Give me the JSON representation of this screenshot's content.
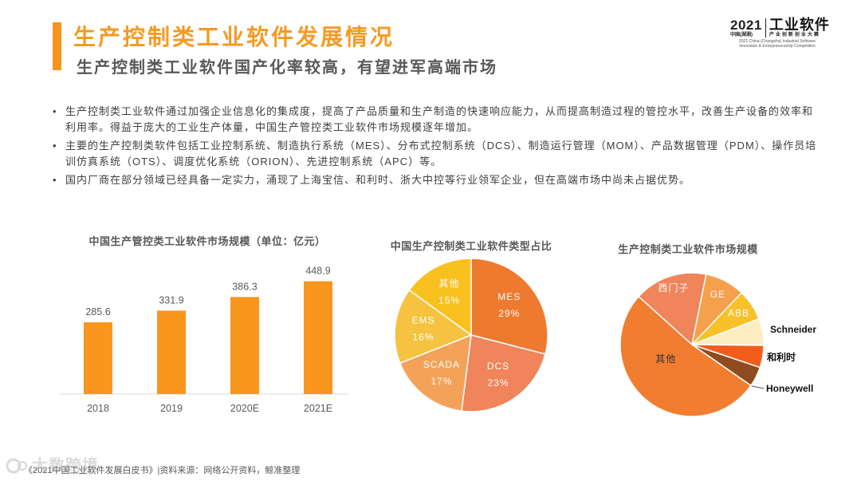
{
  "header": {
    "title": "生产控制类工业软件发展情况",
    "subtitle": "生产控制类工业软件国产化率较高，有望进军高端市场"
  },
  "logo": {
    "year": "2021",
    "name": "工业软件",
    "region": "中国(湖湘)",
    "event": "产业创新创业大赛",
    "english": "2021 China (Changsha) Industrial Software Innovation & Entrepreneurship Competition"
  },
  "bullets": [
    "生产控制类工业软件通过加强企业信息化的集成度，提高了产品质量和生产制造的快速响应能力，从而提高制造过程的管控水平，改善生产设备的效率和利用率。得益于庞大的工业生产体量，中国生产管控类工业软件市场规模逐年增加。",
    "主要的生产控制类软件包括工业控制系统、制造执行系统（MES）、分布式控制系统（DCS）、制造运行管理（MOM）、产品数据管理（PDM）、操作员培训仿真系统（OTS）、调度优化系统（ORION）、先进控制系统（APC）等。",
    "国内厂商在部分领域已经具备一定实力，涌现了上海宝信、和利时、浙大中控等行业领军企业，但在高端市场中尚未占据优势。"
  ],
  "colors": {
    "accent": "#F7941D",
    "title": "#F59A23",
    "text": "#595959"
  },
  "chart_data": [
    {
      "type": "bar",
      "title": "中国生产管控类工业软件市场规模（单位：亿元）",
      "categories": [
        "2018",
        "2019",
        "2020E",
        "2021E"
      ],
      "values": [
        285.6,
        331.9,
        386.3,
        448.9
      ],
      "xlabel": "",
      "ylabel": "",
      "grid": false,
      "color": "#F8961E"
    },
    {
      "type": "pie",
      "title": "中国生产控制类工业软件类型占比",
      "labels": [
        "MES",
        "DCS",
        "SCADA",
        "EMS",
        "其他"
      ],
      "values": [
        29,
        23,
        17,
        16,
        15
      ],
      "value_labels": [
        "29%",
        "23%",
        "17%",
        "16%",
        "15%"
      ],
      "colors": [
        "#EE7A2F",
        "#F0845A",
        "#F4A25A",
        "#F5C340",
        "#F9C11F"
      ]
    },
    {
      "type": "pie",
      "title": "生产控制类工业软件市场规模",
      "labels": [
        "西门子",
        "GE",
        "ABB",
        "Schneider",
        "和利时",
        "Honeywell",
        "其他"
      ],
      "values": [
        16.5,
        9,
        7,
        6,
        5,
        4.5,
        52
      ],
      "colors": [
        "#F0845A",
        "#F5A04C",
        "#F8C12A",
        "#FCEDC2",
        "#F25C1B",
        "#8E4B1E",
        "#F07D30"
      ]
    }
  ],
  "footer": {
    "source": "《2021中国工业软件发展白皮书》|资料来源：网络公开资料，鲸准整理"
  },
  "watermark": "大数跨境"
}
